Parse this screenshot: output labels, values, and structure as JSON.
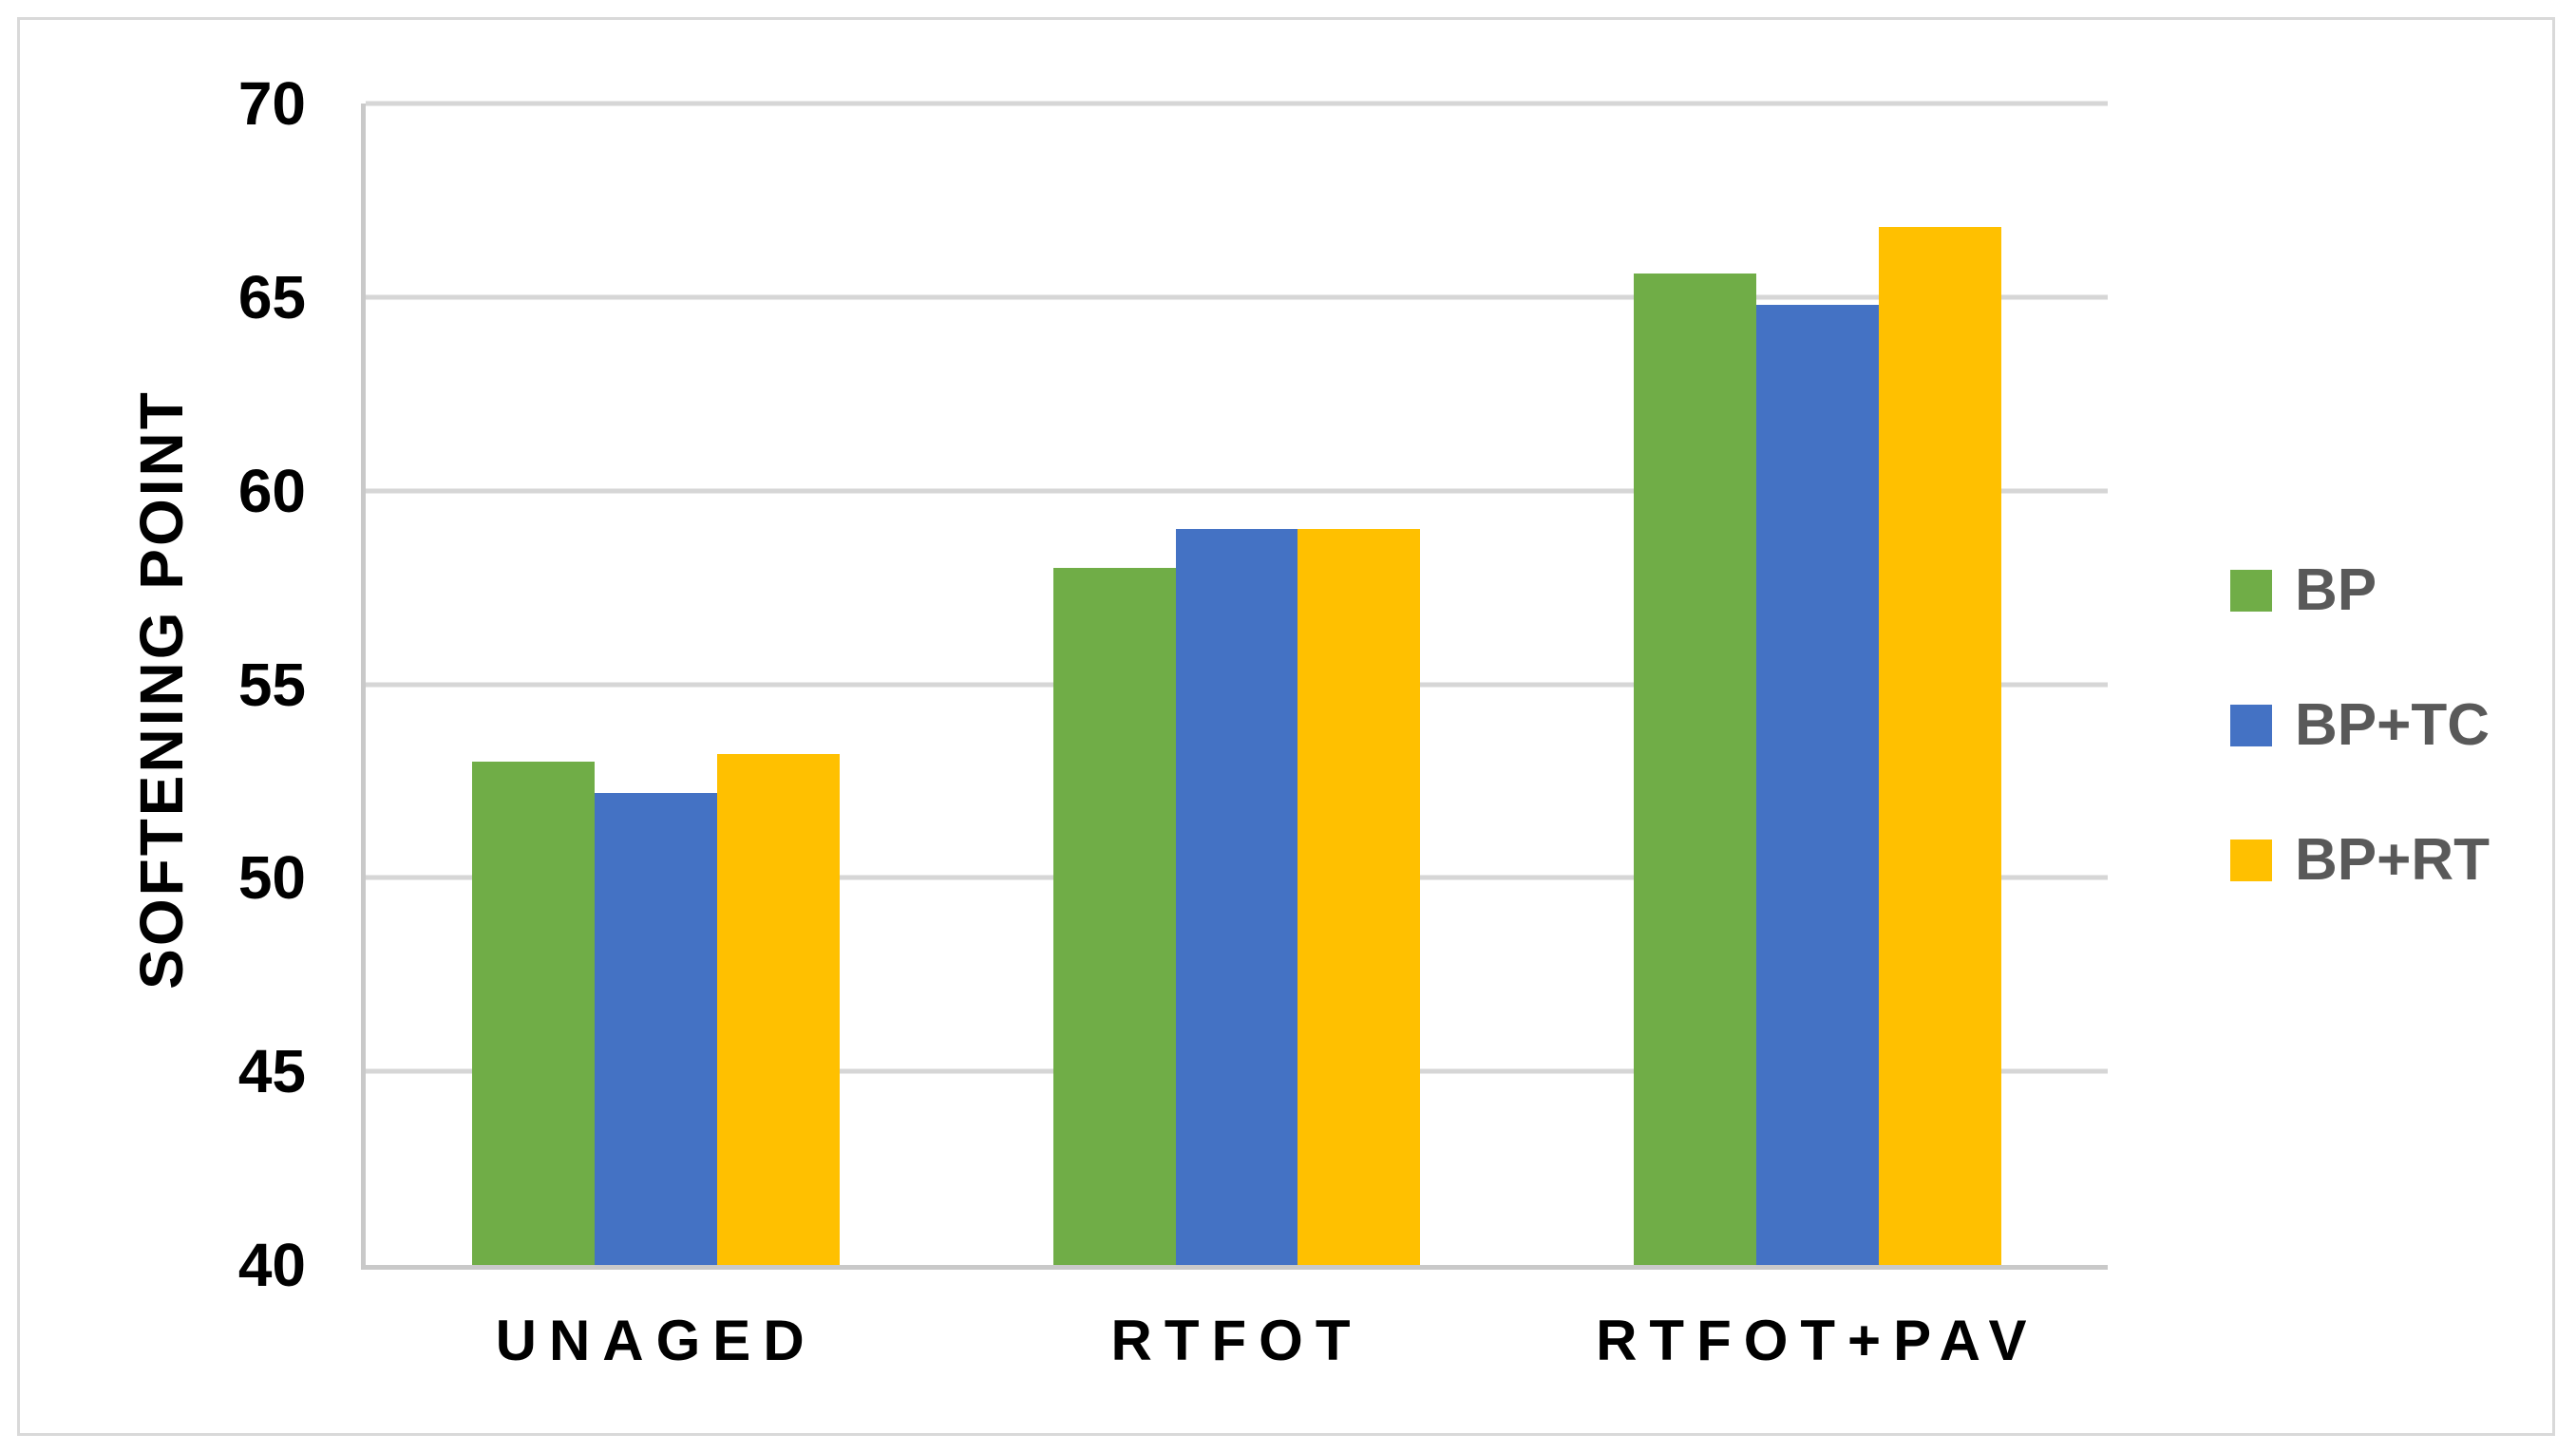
{
  "chart_data": {
    "type": "bar",
    "title": "",
    "categories": [
      "UNAGED",
      "RTFOT",
      "RTFOT+PAV"
    ],
    "series": [
      {
        "name": "BP",
        "color": "#70AD47",
        "values": [
          53.0,
          58.0,
          65.6
        ]
      },
      {
        "name": "BP+TC",
        "color": "#4472C4",
        "values": [
          52.2,
          59.0,
          64.8
        ]
      },
      {
        "name": "BP+RT",
        "color": "#FFC000",
        "values": [
          53.2,
          59.0,
          66.8
        ]
      }
    ],
    "xlabel": "",
    "ylabel": "SOFTENING POINT",
    "ylim": [
      40,
      70
    ],
    "yticks": [
      40,
      45,
      50,
      55,
      60,
      65,
      70
    ],
    "grid": true,
    "legend_position": "right"
  },
  "colors": {
    "background": "#FFFFFF",
    "border": "#D9D9D9",
    "gridline": "#D6D6D6",
    "axis_line": "#C9C9C9",
    "tick_label": "#000000",
    "legend_text": "#595959"
  }
}
